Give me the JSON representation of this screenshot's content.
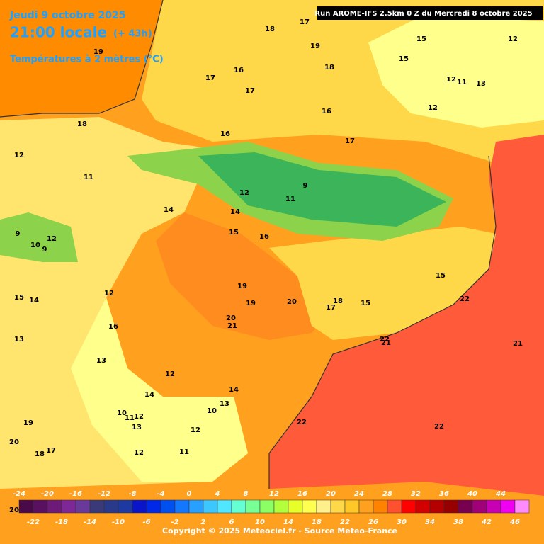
{
  "header": {
    "date": "Jeudi 9 octobre 2025",
    "time": "21:00 locale",
    "lead": "(+ 43h)",
    "variable": "Températures à 2 mètres (°C)",
    "run": "Run AROME-IFS 2.5km 0 Z du Mercredi 8 octobre 2025"
  },
  "legend": {
    "values": [
      -24,
      -22,
      -20,
      -18,
      -16,
      -14,
      -12,
      -10,
      -8,
      -6,
      -4,
      -2,
      0,
      2,
      4,
      6,
      8,
      10,
      12,
      14,
      16,
      18,
      20,
      22,
      24,
      26,
      28,
      30,
      32,
      34,
      36,
      38,
      40,
      42,
      44,
      46
    ],
    "colors": [
      "#4a0a4a",
      "#5a1060",
      "#6e1a78",
      "#7d2896",
      "#6a3a9a",
      "#3a3a78",
      "#2a3a8a",
      "#1e3aa0",
      "#0a14c8",
      "#0028e6",
      "#0050f0",
      "#1478ff",
      "#28a0ff",
      "#3cc8ff",
      "#50e6ff",
      "#64ffd2",
      "#78ff96",
      "#8cff64",
      "#b4ff3c",
      "#e6ff28",
      "#ffff50",
      "#fff08c",
      "#ffd84a",
      "#ffc828",
      "#ffa01e",
      "#ff8200",
      "#ff5030",
      "#ff0000",
      "#d20000",
      "#b40000",
      "#960000",
      "#780050",
      "#a00078",
      "#c800b4",
      "#f000f0",
      "#ff8cff"
    ]
  },
  "map_labels": [
    "18",
    "17",
    "19",
    "18",
    "16",
    "17",
    "17",
    "16",
    "17",
    "16",
    "19",
    "18",
    "12",
    "11",
    "14",
    "12",
    "14",
    "15",
    "16",
    "11",
    "9",
    "9",
    "10",
    "9",
    "12",
    "12",
    "15",
    "14",
    "16",
    "13",
    "13",
    "19",
    "19",
    "20",
    "20",
    "21",
    "17",
    "18",
    "15",
    "22",
    "15",
    "22",
    "21",
    "21",
    "12",
    "14",
    "14",
    "13",
    "10",
    "11",
    "12",
    "10",
    "13",
    "12",
    "19",
    "20",
    "18",
    "17",
    "12",
    "11",
    "22",
    "22",
    "15",
    "12",
    "11",
    "12",
    "15",
    "13",
    "12",
    "17",
    "20"
  ],
  "footer": {
    "copyright": "Copyright © 2025 Meteociel.fr - Source Meteo-France"
  }
}
